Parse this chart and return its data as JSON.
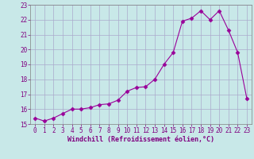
{
  "x": [
    0,
    1,
    2,
    3,
    4,
    5,
    6,
    7,
    8,
    9,
    10,
    11,
    12,
    13,
    14,
    15,
    16,
    17,
    18,
    19,
    20,
    21,
    22,
    23
  ],
  "y": [
    15.4,
    15.2,
    15.4,
    15.7,
    16.0,
    16.0,
    16.1,
    16.3,
    16.35,
    16.6,
    17.2,
    17.45,
    17.5,
    18.0,
    19.0,
    19.8,
    21.9,
    22.1,
    22.6,
    22.0,
    22.6,
    21.3,
    19.8,
    16.7
  ],
  "line_color": "#990099",
  "marker": "D",
  "markersize": 2.5,
  "linewidth": 0.8,
  "bg_color": "#c8e8e8",
  "grid_color": "#aaaacc",
  "xlabel": "Windchill (Refroidissement éolien,°C)",
  "ylim": [
    15,
    23
  ],
  "xlim": [
    -0.5,
    23.5
  ],
  "yticks": [
    15,
    16,
    17,
    18,
    19,
    20,
    21,
    22,
    23
  ],
  "xticks": [
    0,
    1,
    2,
    3,
    4,
    5,
    6,
    7,
    8,
    9,
    10,
    11,
    12,
    13,
    14,
    15,
    16,
    17,
    18,
    19,
    20,
    21,
    22,
    23
  ],
  "tick_color": "#800080",
  "label_color": "#800080",
  "tick_fontsize": 5.5,
  "xlabel_fontsize": 6.0
}
